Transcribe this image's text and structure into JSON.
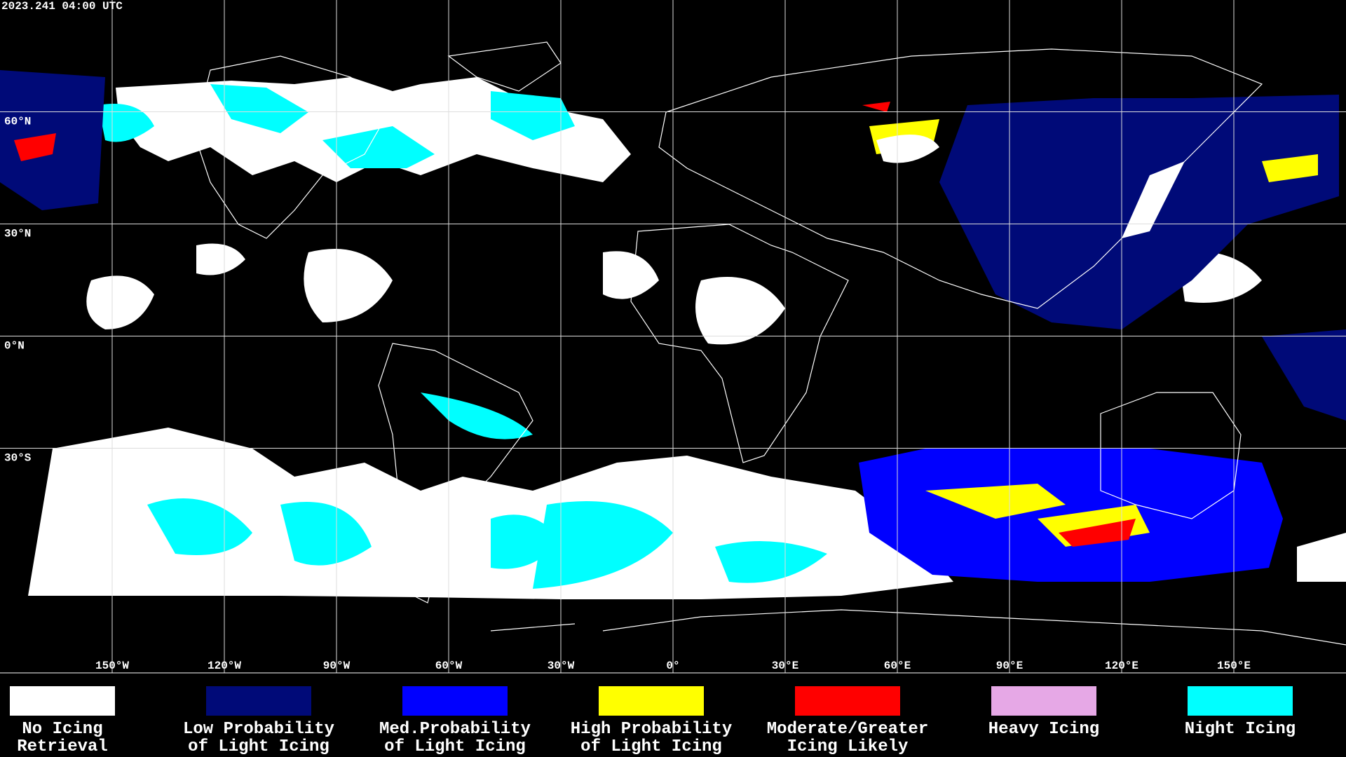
{
  "header": {
    "timestamp": "2023.241 04:00 UTC"
  },
  "map": {
    "latitude_labels": [
      "60°N",
      "30°N",
      "0°N",
      "30°S"
    ],
    "longitude_labels": [
      "150°W",
      "120°W",
      "90°W",
      "60°W",
      "30°W",
      "0°",
      "30°E",
      "60°E",
      "90°E",
      "120°E",
      "150°E"
    ]
  },
  "legend": [
    {
      "label_lines": [
        "No Icing",
        "Retrieval"
      ],
      "color": "#ffffff"
    },
    {
      "label_lines": [
        "Low Probability",
        "of Light Icing"
      ],
      "color": "#000a78"
    },
    {
      "label_lines": [
        "Med.Probability",
        "of Light Icing"
      ],
      "color": "#0000ff"
    },
    {
      "label_lines": [
        "High Probability",
        "of Light Icing"
      ],
      "color": "#ffff00"
    },
    {
      "label_lines": [
        "Moderate/Greater",
        "Icing Likely"
      ],
      "color": "#ff0000"
    },
    {
      "label_lines": [
        "Heavy Icing"
      ],
      "color": "#e6a8e6"
    },
    {
      "label_lines": [
        "Night Icing"
      ],
      "color": "#00ffff"
    }
  ]
}
